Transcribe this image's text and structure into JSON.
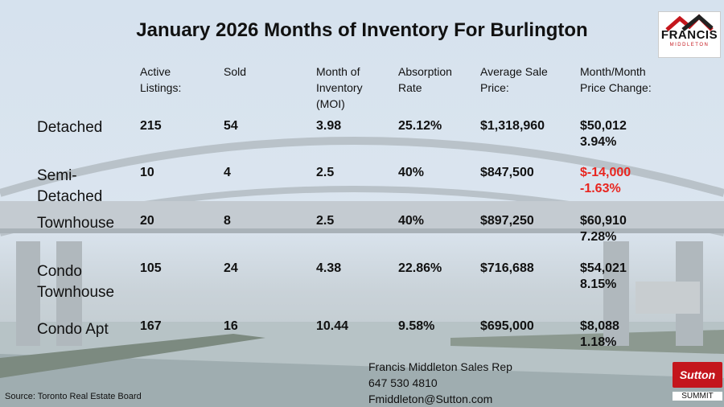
{
  "title": "January 2026 Months of Inventory For Burlington",
  "headers": {
    "active": [
      "Active",
      "Listings:"
    ],
    "sold": [
      "Sold"
    ],
    "moi": [
      "Month of",
      "Inventory",
      "(MOI)"
    ],
    "absorption": [
      "Absorption",
      "Rate"
    ],
    "avg_price": [
      "Average Sale",
      "Price:"
    ],
    "mom": [
      "Month/Month",
      "Price Change:"
    ]
  },
  "rows": [
    {
      "label": [
        "Detached"
      ],
      "active": "215",
      "sold": "54",
      "moi": "3.98",
      "absorption": "25.12%",
      "avg_price": "$1,318,960",
      "change_amount": "$50,012",
      "change_pct": "3.94%"
    },
    {
      "label": [
        "Semi-",
        "Detached"
      ],
      "active": "10",
      "sold": "4",
      "moi": "2.5",
      "absorption": "40%",
      "avg_price": "$847,500",
      "change_amount": "$-14,000",
      "change_pct": "-1.63%"
    },
    {
      "label": [
        "Townhouse"
      ],
      "active": "20",
      "sold": "8",
      "moi": "2.5",
      "absorption": "40%",
      "avg_price": "$897,250",
      "change_amount": "$60,910",
      "change_pct": "7.28%"
    },
    {
      "label": [
        "Condo",
        "Townhouse"
      ],
      "active": "105",
      "sold": "24",
      "moi": "4.38",
      "absorption": "22.86%",
      "avg_price": "$716,688",
      "change_amount": "$54,021",
      "change_pct": "8.15%"
    },
    {
      "label": [
        "Condo Apt"
      ],
      "active": "167",
      "sold": "16",
      "moi": "10.44",
      "absorption": "9.58%",
      "avg_price": "$695,000",
      "change_amount": "$8,088",
      "change_pct": "1.18%"
    }
  ],
  "contact": {
    "name": "Francis Middleton Sales Rep",
    "phone": "647 530 4810",
    "email": "Fmiddleton@Sutton.com"
  },
  "source": "Source: Toronto Real Estate Board",
  "logo": {
    "name": "FRANCIS",
    "sub": "MIDDLETON"
  },
  "brand": {
    "name": "Sutton",
    "sub": "SUMMIT"
  },
  "colors": {
    "negative": "#e8251f",
    "brand_red": "#c4161c"
  }
}
